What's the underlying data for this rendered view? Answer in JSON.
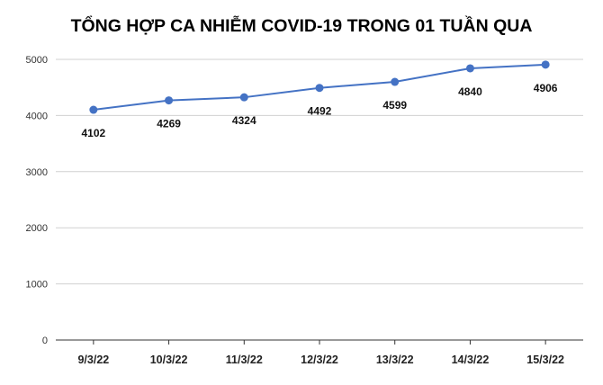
{
  "chart_data": {
    "type": "line",
    "title": "TỔNG HỢP CA NHIỄM COVID-19 TRONG 01 TUẦN QUA",
    "categories": [
      "9/3/22",
      "10/3/22",
      "11/3/22",
      "12/3/22",
      "13/3/22",
      "14/3/22",
      "15/3/22"
    ],
    "series": [
      {
        "values": [
          4102,
          4269,
          4324,
          4492,
          4599,
          4840,
          4906
        ]
      }
    ],
    "data_labels": [
      "4102",
      "4269",
      "4324",
      "4492",
      "4599",
      "4840",
      "4906"
    ],
    "yticks": [
      "0",
      "1000",
      "2000",
      "3000",
      "4000",
      "5000"
    ],
    "ylim": [
      0,
      5000
    ],
    "xlabel": "",
    "ylabel": "",
    "grid": true,
    "legend": "none",
    "colors": {
      "line": "#4472c4",
      "marker": "#4472c4",
      "grid": "#d0d0d0"
    }
  }
}
